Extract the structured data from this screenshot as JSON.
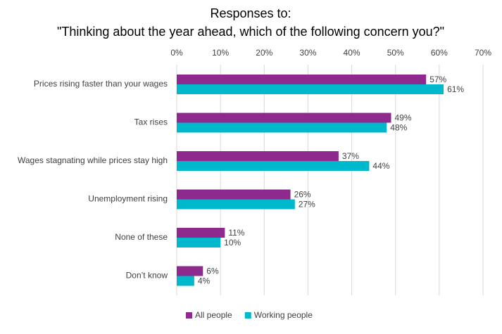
{
  "chart_data": {
    "type": "bar",
    "orientation": "horizontal",
    "title": "Responses to:",
    "subtitle": "\"Thinking about the year ahead, which of the following concern you?\"",
    "categories": [
      "Prices rising faster than your wages",
      "Tax rises",
      "Wages stagnating while prices stay high",
      "Unemployment rising",
      "None of these",
      "Don’t know"
    ],
    "series": [
      {
        "name": "All people",
        "color": "#8e2a8e",
        "values": [
          57,
          49,
          37,
          26,
          11,
          6
        ],
        "value_labels": [
          "57%",
          "49%",
          "37%",
          "26%",
          "11%",
          "6%"
        ]
      },
      {
        "name": "Working people",
        "color": "#00b8cc",
        "values": [
          61,
          48,
          44,
          27,
          10,
          4
        ],
        "value_labels": [
          "61%",
          "48%",
          "44%",
          "27%",
          "10%",
          "4%"
        ]
      }
    ],
    "xlim": [
      0,
      70
    ],
    "xticks": [
      {
        "value": 0,
        "label": "0%"
      },
      {
        "value": 10,
        "label": "10%"
      },
      {
        "value": 20,
        "label": "20%"
      },
      {
        "value": 30,
        "label": "30%"
      },
      {
        "value": 40,
        "label": "40%"
      },
      {
        "value": 50,
        "label": "50%"
      },
      {
        "value": 60,
        "label": "60%"
      },
      {
        "value": 70,
        "label": "70%"
      }
    ],
    "grid": true,
    "legend": "bottom"
  }
}
